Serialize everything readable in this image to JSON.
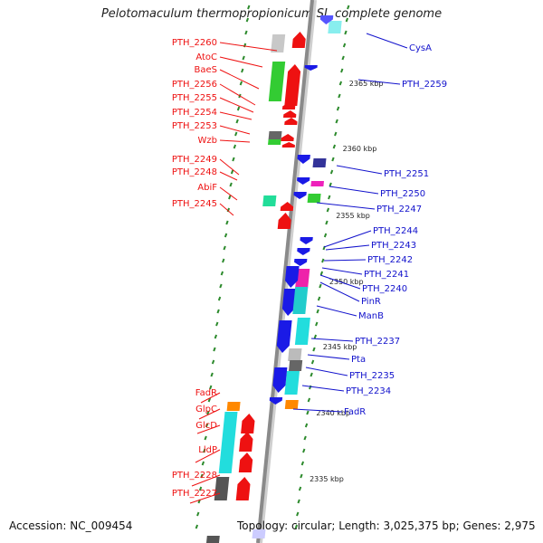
{
  "title": "Pelotomaculum thermopropionicum SI, complete genome",
  "footer": {
    "accession": "Accession: NC_009454",
    "summary": "Topology: circular; Length: 3,025,375 bp; Genes: 2,975"
  },
  "colors": {
    "forward_gene": "#ee1111",
    "reverse_gene": "#1a1ae6",
    "label_forward": "#ee1111",
    "label_reverse": "#1111cc",
    "backbone": "#8a8a8a",
    "tick": "#2c8a2c"
  },
  "scale_labels": [
    "2365 kbp",
    "2360 kbp",
    "2355 kbp",
    "2350 kbp",
    "2345 kbp",
    "2340 kbp",
    "2335 kbp"
  ],
  "left_labels": [
    "PTH_2260",
    "AtoC",
    "BaeS",
    "PTH_2256",
    "PTH_2255",
    "PTH_2254",
    "PTH_2253",
    "Wzb",
    "PTH_2249",
    "PTH_2248",
    "AbiF",
    "PTH_2245",
    "FadR",
    "GlpC",
    "GlcD",
    "LldP",
    "PTH_2228",
    "PTH_2227"
  ],
  "right_labels": [
    "CysA",
    "PTH_2259",
    "PTH_2251",
    "PTH_2250",
    "PTH_2247",
    "PTH_2244",
    "PTH_2243",
    "PTH_2242",
    "PTH_2241",
    "PTH_2240",
    "PinR",
    "ManB",
    "PTH_2237",
    "Pta",
    "PTH_2235",
    "PTH_2234",
    "FadR"
  ]
}
